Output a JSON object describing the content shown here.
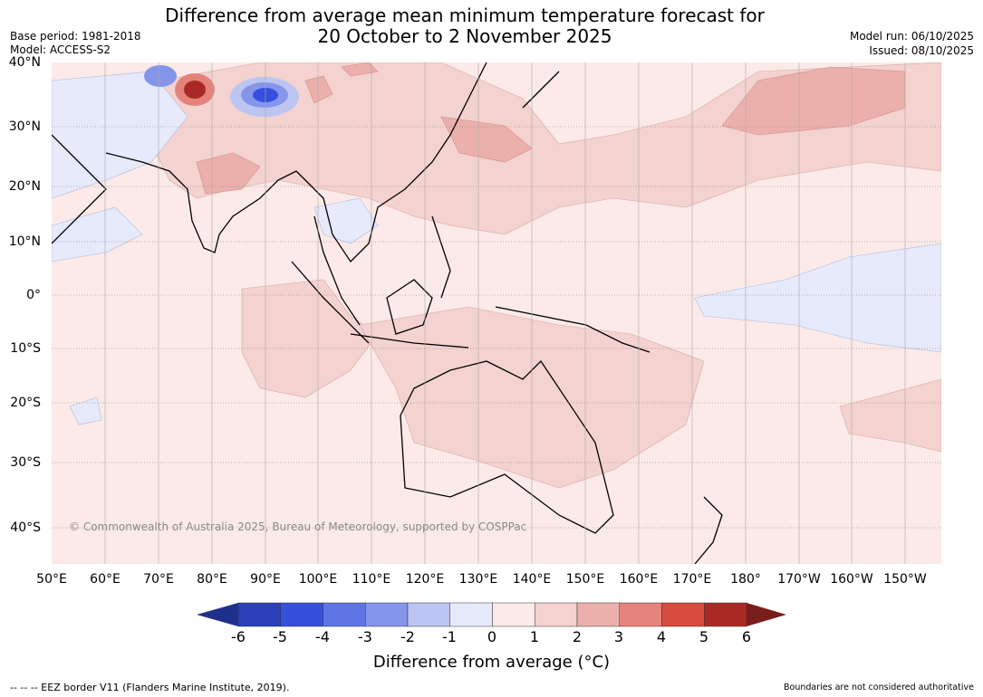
{
  "header": {
    "title_line1": "Difference from average mean minimum temperature forecast for",
    "title_line2": "20 October to 2 November 2025",
    "base_period": "Base period: 1981-2018",
    "model": "Model: ACCESS-S2",
    "model_run": "Model run: 06/10/2025",
    "issued": "Issued: 08/10/2025"
  },
  "map": {
    "latitude_labels": [
      "40°N",
      "30°N",
      "20°N",
      "10°N",
      "0°",
      "10°S",
      "20°S",
      "30°S",
      "40°S"
    ],
    "longitude_labels": [
      "50°E",
      "60°E",
      "70°E",
      "80°E",
      "90°E",
      "100°E",
      "110°E",
      "120°E",
      "130°E",
      "140°E",
      "150°E",
      "160°E",
      "170°E",
      "180°",
      "170°W",
      "160°W",
      "150°W"
    ],
    "copyright": "© Commonwealth of Australia 2025, Bureau of Meteorology, supported by COSPPac"
  },
  "colorbar": {
    "ticks": [
      "-6",
      "-5",
      "-4",
      "-3",
      "-2",
      "-1",
      "0",
      "1",
      "2",
      "3",
      "4",
      "5",
      "6"
    ],
    "colors": [
      "#1f2f8c",
      "#2a3fb8",
      "#3550dc",
      "#5f74e4",
      "#8595ea",
      "#bcc4f2",
      "#e6eafa",
      "#fbeae8",
      "#f3d2cf",
      "#ebb0ac",
      "#e4837b",
      "#d84a3e",
      "#a92a24",
      "#7a1e1b"
    ],
    "label": "Difference from average (°C)"
  },
  "footer": {
    "eez": "--  --  -- EEZ border V11 (Flanders Marine Institute, 2019).",
    "boundaries": "Boundaries are not considered authoritative"
  }
}
